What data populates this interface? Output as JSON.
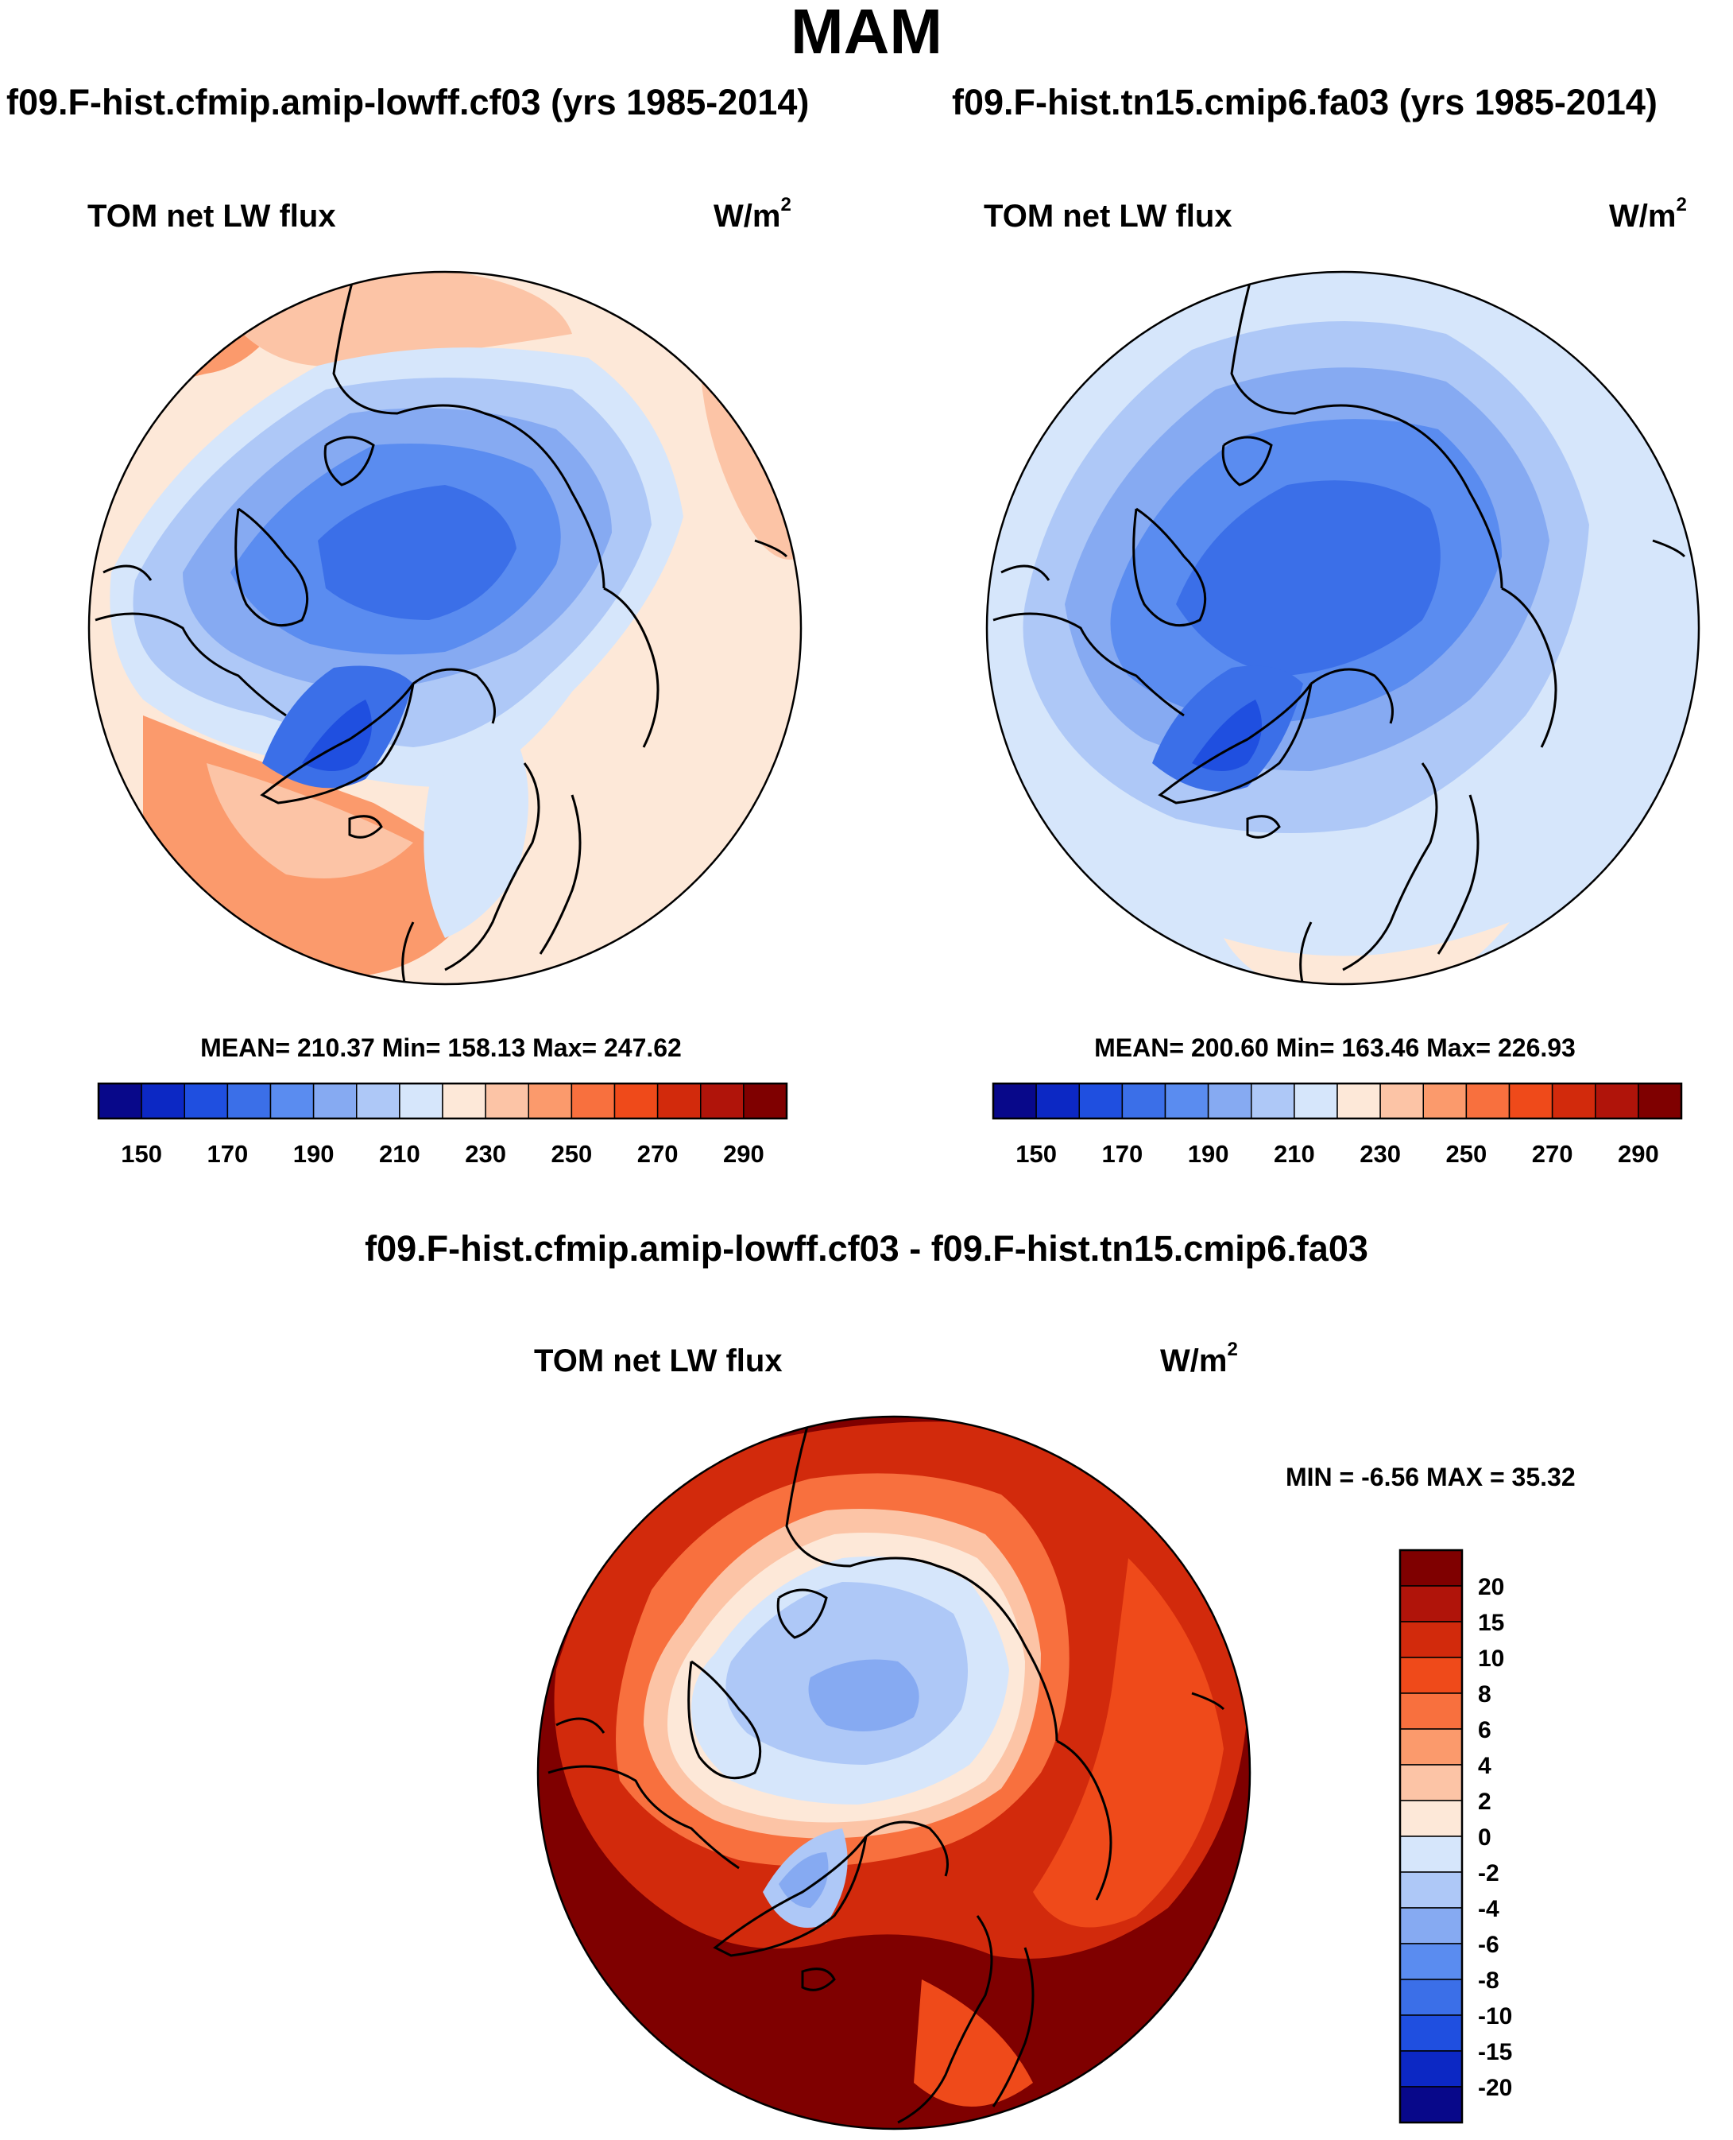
{
  "title": "MAM",
  "panels": [
    {
      "case": "f09.F-hist.cfmip.amip-lowff.cf03 (yrs 1985-2014)",
      "variable": "TOM net LW flux",
      "units_base": "W/m",
      "units_exp": "2",
      "stats": "MEAN= 210.37  Min= 158.13  Max= 247.62"
    },
    {
      "case": "f09.F-hist.tn15.cmip6.fa03 (yrs 1985-2014)",
      "variable": "TOM net LW flux",
      "units_base": "W/m",
      "units_exp": "2",
      "stats": "MEAN= 200.60  Min= 163.46  Max= 226.93"
    }
  ],
  "diff_panel": {
    "title": "f09.F-hist.cfmip.amip-lowff.cf03 - f09.F-hist.tn15.cmip6.fa03",
    "variable": "TOM net LW flux",
    "units_base": "W/m",
    "units_exp": "2",
    "stats": "MIN =  -6.56 MAX =  35.32"
  },
  "chart_data": [
    {
      "type": "heatmap",
      "projection": "north polar stereographic",
      "title": "f09.F-hist.cfmip.amip-lowff.cf03 (yrs 1985-2014)",
      "variable": "TOM net LW flux",
      "units": "W/m2",
      "mean": 210.37,
      "min": 158.13,
      "max": 247.62,
      "colorbar": {
        "levels": [
          150,
          160,
          170,
          180,
          190,
          200,
          210,
          220,
          230,
          240,
          250,
          260,
          270,
          280,
          290
        ],
        "tick_labels": [
          "150",
          "170",
          "190",
          "210",
          "230",
          "250",
          "270",
          "290"
        ],
        "colors": [
          "#08088a",
          "#0c28c4",
          "#1f4fe0",
          "#3b6fe8",
          "#5a8cf0",
          "#86aaf2",
          "#aec8f7",
          "#d6e6fb",
          "#fde8d8",
          "#fcc4a6",
          "#fb9a6c",
          "#f8703e",
          "#ef4a1a",
          "#d22a0c",
          "#b0140a",
          "#7f0000"
        ]
      }
    },
    {
      "type": "heatmap",
      "projection": "north polar stereographic",
      "title": "f09.F-hist.tn15.cmip6.fa03 (yrs 1985-2014)",
      "variable": "TOM net LW flux",
      "units": "W/m2",
      "mean": 200.6,
      "min": 163.46,
      "max": 226.93,
      "colorbar": {
        "levels": [
          150,
          160,
          170,
          180,
          190,
          200,
          210,
          220,
          230,
          240,
          250,
          260,
          270,
          280,
          290
        ],
        "tick_labels": [
          "150",
          "170",
          "190",
          "210",
          "230",
          "250",
          "270",
          "290"
        ],
        "colors": [
          "#08088a",
          "#0c28c4",
          "#1f4fe0",
          "#3b6fe8",
          "#5a8cf0",
          "#86aaf2",
          "#aec8f7",
          "#d6e6fb",
          "#fde8d8",
          "#fcc4a6",
          "#fb9a6c",
          "#f8703e",
          "#ef4a1a",
          "#d22a0c",
          "#b0140a",
          "#7f0000"
        ]
      }
    },
    {
      "type": "heatmap",
      "projection": "north polar stereographic",
      "title": "f09.F-hist.cfmip.amip-lowff.cf03 - f09.F-hist.tn15.cmip6.fa03",
      "variable": "TOM net LW flux",
      "units": "W/m2",
      "min": -6.56,
      "max": 35.32,
      "colorbar": {
        "orientation": "vertical",
        "tick_labels": [
          "20",
          "15",
          "10",
          "8",
          "6",
          "4",
          "2",
          "0",
          "-2",
          "-4",
          "-6",
          "-8",
          "-10",
          "-15",
          "-20"
        ],
        "colors": [
          "#7f0000",
          "#b0140a",
          "#d22a0c",
          "#ef4a1a",
          "#f8703e",
          "#fb9a6c",
          "#fcc4a6",
          "#fde8d8",
          "#d6e6fb",
          "#aec8f7",
          "#86aaf2",
          "#5a8cf0",
          "#3b6fe8",
          "#1f4fe0",
          "#0c28c4",
          "#08088a"
        ]
      }
    }
  ]
}
